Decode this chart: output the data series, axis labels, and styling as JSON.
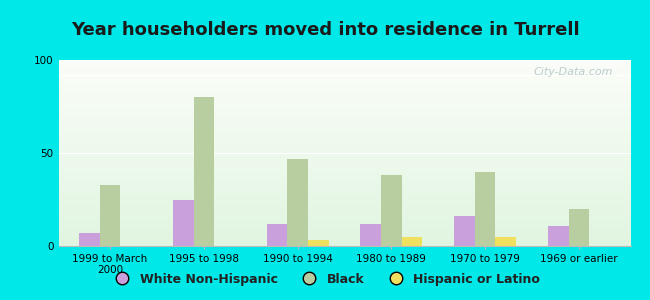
{
  "title": "Year householders moved into residence in Turrell",
  "categories": [
    "1999 to March\n2000",
    "1995 to 1998",
    "1990 to 1994",
    "1980 to 1989",
    "1970 to 1979",
    "1969 or earlier"
  ],
  "series": {
    "White Non-Hispanic": [
      7,
      25,
      12,
      12,
      16,
      11
    ],
    "Black": [
      33,
      80,
      47,
      38,
      40,
      20
    ],
    "Hispanic or Latino": [
      0,
      0,
      3,
      5,
      5,
      0
    ]
  },
  "colors": {
    "White Non-Hispanic": "#c9a0dc",
    "Black": "#b8cda0",
    "Hispanic or Latino": "#f0e060"
  },
  "ylim": [
    0,
    100
  ],
  "yticks": [
    0,
    50,
    100
  ],
  "bar_width": 0.22,
  "background_color": "#00e8e8",
  "title_fontsize": 13,
  "tick_fontsize": 7.5,
  "legend_fontsize": 9,
  "watermark": "City-Data.com"
}
